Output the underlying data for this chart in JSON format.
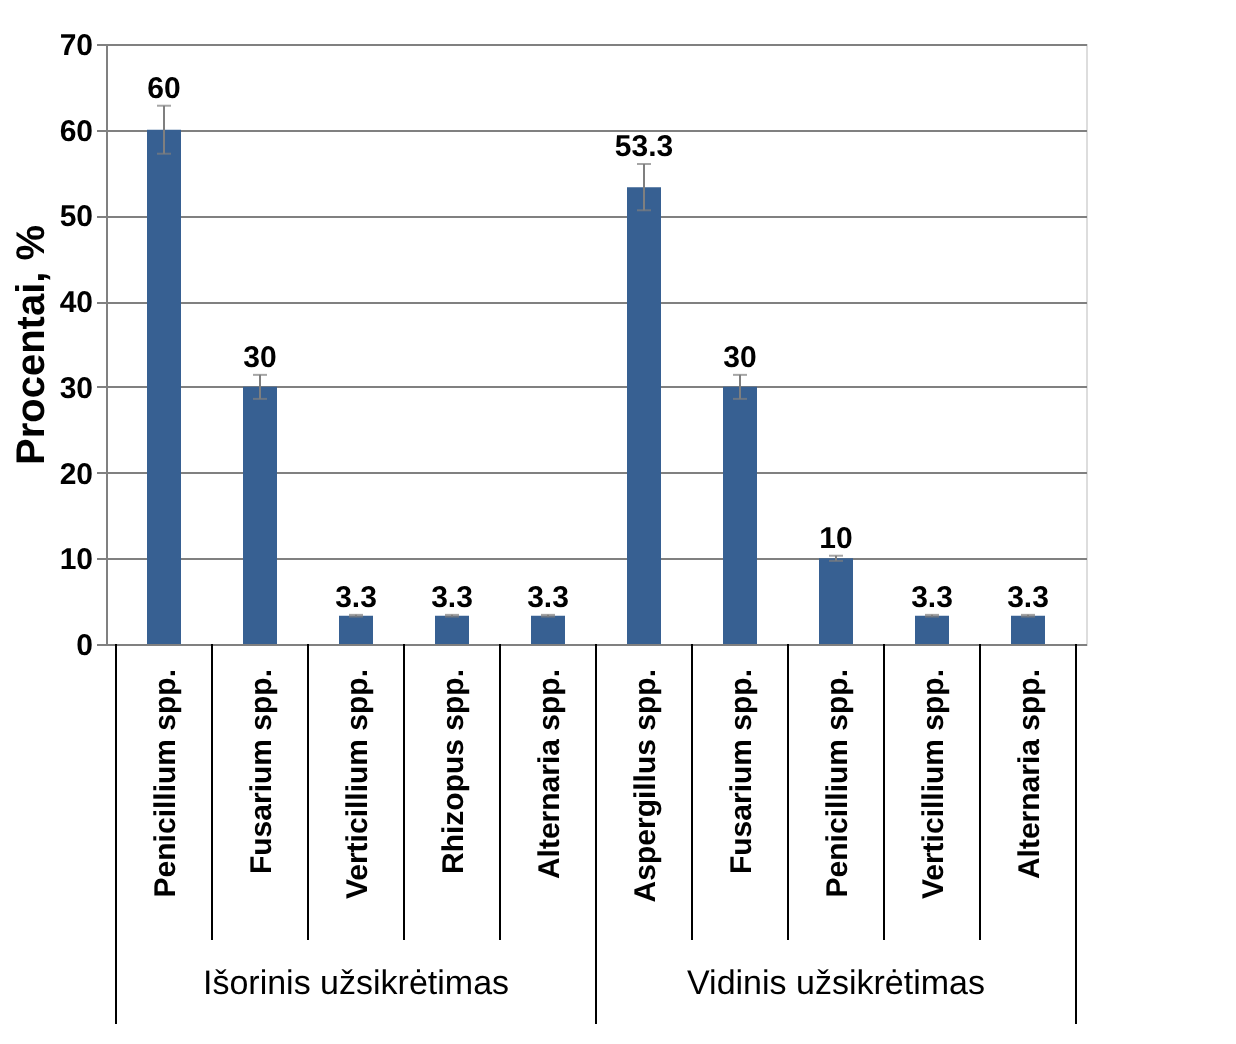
{
  "chart_data": {
    "type": "bar",
    "ylabel": "Procentai, %",
    "categories": [
      "Penicillium spp.",
      "Fusarium spp.",
      "Verticillium spp.",
      "Rhizopus spp.",
      "Alternaria spp.",
      "Aspergillus spp.",
      "Fusarium spp.",
      "Penicillium spp.",
      "Verticillium spp.",
      "Alternaria spp."
    ],
    "values": [
      60,
      30,
      3.3,
      3.3,
      3.3,
      53.3,
      30,
      10,
      3.3,
      3.3
    ],
    "errors": [
      2.8,
      1.4,
      0.1,
      0.1,
      0.1,
      2.7,
      1.4,
      0.3,
      0.1,
      0.1
    ],
    "color": "#376092",
    "ylim": [
      0,
      70
    ],
    "yticks": [
      0,
      10,
      20,
      30,
      40,
      50,
      60,
      70
    ],
    "grid": "y",
    "data_labels": true,
    "annotations": [
      "Išorinis  užsikrėtimas",
      "Vidinis užsikrėtimas"
    ]
  }
}
